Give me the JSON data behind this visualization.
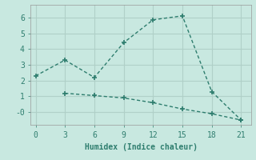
{
  "line1_x": [
    0,
    3,
    6,
    9,
    12,
    15,
    18,
    21
  ],
  "line1_y": [
    2.3,
    3.3,
    2.2,
    4.4,
    5.85,
    6.1,
    1.3,
    -0.5
  ],
  "line2_x": [
    3,
    6,
    9,
    12,
    15,
    18,
    21
  ],
  "line2_y": [
    1.2,
    1.05,
    0.9,
    0.6,
    0.2,
    -0.1,
    -0.5
  ],
  "line_color": "#2e7d6e",
  "bg_color": "#c8e8e0",
  "grid_color": "#b0d0c8",
  "xlabel": "Humidex (Indice chaleur)",
  "xlim": [
    -0.5,
    22
  ],
  "ylim": [
    -0.8,
    6.8
  ],
  "xticks": [
    0,
    3,
    6,
    9,
    12,
    15,
    18,
    21
  ],
  "yticks": [
    0,
    1,
    2,
    3,
    4,
    5,
    6
  ],
  "ytick_labels": [
    "-0",
    "1",
    "2",
    "3",
    "4",
    "5",
    "6"
  ],
  "label_fontsize": 7,
  "tick_fontsize": 7
}
